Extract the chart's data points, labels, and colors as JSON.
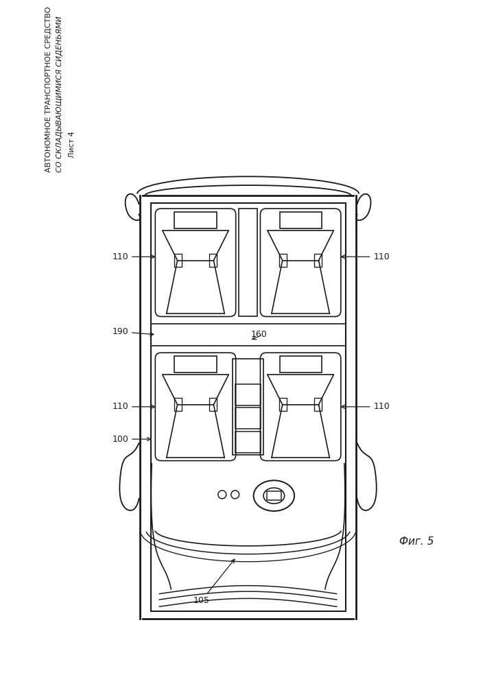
{
  "title_line1": "АВТОНОМНОЕ ТРАНСПОРТНОЕ СРЕДСТВО",
  "title_line2": "СО СКЛАДЫВАЮЩИМИСЯ СИДЕНЬЯМИ",
  "sheet_label": "Лист 4",
  "fig_label": "Фиг. 5",
  "bg_color": "#ffffff",
  "line_color": "#1a1a1a"
}
